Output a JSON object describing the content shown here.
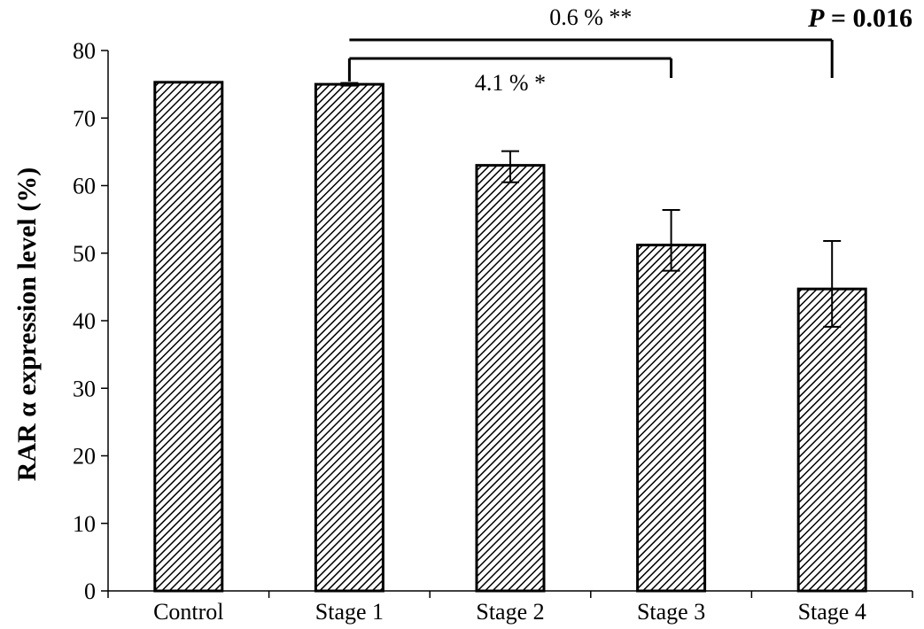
{
  "chart_data": {
    "type": "bar",
    "title": "",
    "xlabel": "",
    "ylabel": "RAR α expression level (%)",
    "ylim": [
      0,
      80
    ],
    "yticks": [
      0,
      10,
      20,
      30,
      40,
      50,
      60,
      70,
      80
    ],
    "grid": false,
    "legend": "none",
    "categories": [
      "Control",
      "Stage 1",
      "Stage 2",
      "Stage 3",
      "Stage 4"
    ],
    "values": [
      75.3,
      75.0,
      63.0,
      51.2,
      44.7
    ],
    "error_lower": [
      0,
      0.2,
      2.5,
      3.8,
      5.6
    ],
    "error_upper": [
      0,
      0.2,
      2.1,
      5.2,
      7.1
    ],
    "bar_fill": "hatched",
    "bar_stroke": "#000000",
    "annotations": {
      "bracket_inner": {
        "from": "Stage 1",
        "to": "Stage 3",
        "label": "4.1 % *"
      },
      "bracket_outer": {
        "from": "Stage 1",
        "to": "Stage 4",
        "label": "0.6 % **"
      },
      "p_value": {
        "italic": "P",
        "text": " = 0.016"
      }
    }
  }
}
